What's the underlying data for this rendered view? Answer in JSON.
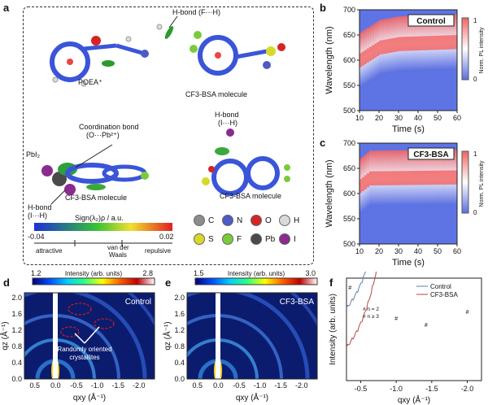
{
  "panels": {
    "a": "a",
    "b": "b",
    "c": "c",
    "d": "d",
    "e": "e",
    "f": "f"
  },
  "panel_a": {
    "hbond_top": "H-bond (F···H)",
    "poea": "POEA⁺",
    "cf3_top": "CF3-BSA molecule",
    "coord": "Coordination bond",
    "coord2": "(O···Pb²⁺)",
    "pbi2": "PbI₂",
    "cf3_mid": "CF3-BSA molecule",
    "hbond_left": "H-bond",
    "hbond_left2": "(I···H)",
    "hbond_right": "H-bond",
    "hbond_right2": "(I···H)",
    "cf3_right": "CF3-BSA molecule",
    "scale_title": "Sign(λ₂)ρ / a.u.",
    "scale_min": "-0.04",
    "scale_max": "0.02",
    "attractive": "attractive",
    "vdw1": "van der",
    "vdw2": "Waals",
    "repulsive": "repulsive",
    "legend": [
      {
        "sym": "C",
        "color": "#8c8c8c"
      },
      {
        "sym": "N",
        "color": "#4b5cc4"
      },
      {
        "sym": "O",
        "color": "#d62424"
      },
      {
        "sym": "H",
        "color": "#d9d9d9"
      },
      {
        "sym": "S",
        "color": "#d8d82a"
      },
      {
        "sym": "F",
        "color": "#7acb3a"
      },
      {
        "sym": "Pb",
        "color": "#4a4a4a"
      },
      {
        "sym": "I",
        "color": "#8b2a8f"
      }
    ]
  },
  "chart_data": [
    {
      "id": "b",
      "type": "heatmap",
      "title": "Control",
      "xlabel": "Time (s)",
      "ylabel": "Wavelength (nm)",
      "xlim": [
        10,
        60
      ],
      "ylim": [
        500,
        700
      ],
      "xticks": [
        10,
        20,
        30,
        40,
        50,
        60
      ],
      "yticks": [
        500,
        550,
        600,
        650,
        700
      ],
      "colorbar_label": "Norm. PL intensity",
      "colorbar_ticks": [
        "1",
        "0"
      ],
      "peak_nm": [
        [
          10,
          600
        ],
        [
          20,
          625
        ],
        [
          30,
          632
        ],
        [
          60,
          636
        ]
      ]
    },
    {
      "id": "c",
      "type": "heatmap",
      "title": "CF3-BSA",
      "xlabel": "Time (s)",
      "ylabel": "Wavelength (nm)",
      "xlim": [
        10,
        60
      ],
      "ylim": [
        500,
        700
      ],
      "xticks": [
        10,
        20,
        30,
        40,
        50,
        60
      ],
      "yticks": [
        500,
        550,
        600,
        650,
        700
      ],
      "colorbar_label": "Norm. PL intensity",
      "colorbar_ticks": [
        "1",
        "0"
      ],
      "peak_nm": [
        [
          10,
          615
        ],
        [
          15,
          630
        ],
        [
          60,
          632
        ]
      ]
    },
    {
      "id": "d",
      "type": "heatmap",
      "title": "Control",
      "xlabel": "qxy (Å⁻¹)",
      "ylabel": "qz (Å⁻¹)",
      "colorbar_label": "Intensity (arb. units)",
      "colorbar_ticks": [
        "1.2",
        "2.8"
      ],
      "xticks": [
        "0.5",
        "0.0",
        "-0.5",
        "-1.0",
        "-1.5",
        "-2.0"
      ],
      "yticks": [
        "0.0",
        "0.4",
        "0.8",
        "1.2",
        "1.6",
        "2.0"
      ],
      "annotation": "Randomly oriented crystallites"
    },
    {
      "id": "e",
      "type": "heatmap",
      "title": "CF3-BSA",
      "xlabel": "qxy (Å⁻¹)",
      "ylabel": "qz (Å⁻¹)",
      "colorbar_label": "Intensity (arb. units)",
      "colorbar_ticks": [
        "1.5",
        "3.0"
      ],
      "xticks": [
        "0.5",
        "0.0",
        "-0.5",
        "-1.0",
        "-1.5",
        "-2.0"
      ],
      "yticks": [
        "0.0",
        "0.4",
        "0.8",
        "1.2",
        "1.6",
        "2.0"
      ]
    },
    {
      "id": "f",
      "type": "line",
      "xlabel": "qxy (Å⁻¹)",
      "ylabel": "Intensity (arb. units)",
      "xticks": [
        "-0.5",
        "-1.0",
        "-1.5",
        "-2.0"
      ],
      "xlim": [
        -0.3,
        -2.2
      ],
      "legend": [
        "Control",
        "CF3-BSA"
      ],
      "series_colors": [
        "#5b7fa6",
        "#b5473f"
      ],
      "annotations": [
        "# n = 2",
        "# n ≥ 3"
      ]
    }
  ]
}
